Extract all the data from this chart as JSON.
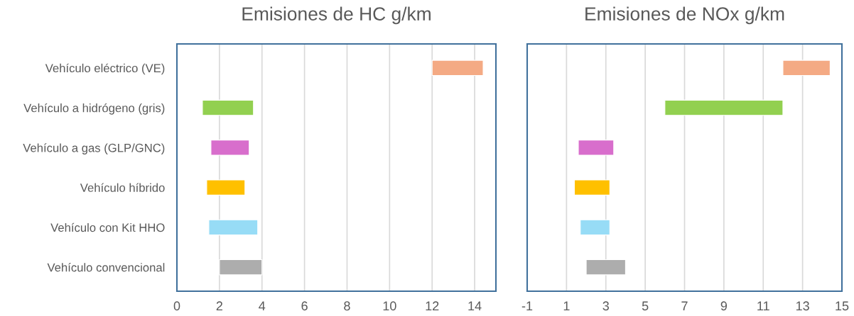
{
  "chart_data": [
    {
      "type": "bar",
      "orientation": "horizontal",
      "title": "Emisiones de HC g/km",
      "categories": [
        "Vehículo eléctrico (VE)",
        "Vehículo a hidrógeno (gris)",
        "Vehículo a gas (GLP/GNC)",
        "Vehículo híbrido",
        "Vehículo con Kit HHO",
        "Vehículo convencional"
      ],
      "base": [
        12,
        1.2,
        1.6,
        1.4,
        1.5,
        2
      ],
      "values": [
        2.4,
        2.4,
        1.8,
        1.8,
        2.3,
        2
      ],
      "colors": [
        "#f4aa84",
        "#92d050",
        "#d86ecc",
        "#ffc000",
        "#97dcf6",
        "#adadad"
      ],
      "xlim": [
        0,
        15
      ],
      "xticks": [
        0,
        2,
        4,
        6,
        8,
        10,
        12,
        14
      ],
      "grid": "x"
    },
    {
      "type": "bar",
      "orientation": "horizontal",
      "title": "Emisiones de NOx g/km",
      "categories": [
        null,
        null,
        null,
        null,
        null,
        null
      ],
      "base": [
        12,
        6,
        1.6,
        1.4,
        1.7,
        2
      ],
      "values": [
        2.4,
        6,
        1.8,
        1.8,
        1.5,
        2
      ],
      "colors": [
        "#f4aa84",
        "#92d050",
        "#d86ecc",
        "#ffc000",
        "#97dcf6",
        "#adadad"
      ],
      "xlim": [
        -1,
        15
      ],
      "xticks": [
        -1,
        1,
        3,
        5,
        7,
        9,
        11,
        13,
        15
      ],
      "grid": "x",
      "tick_labels": "x"
    }
  ]
}
